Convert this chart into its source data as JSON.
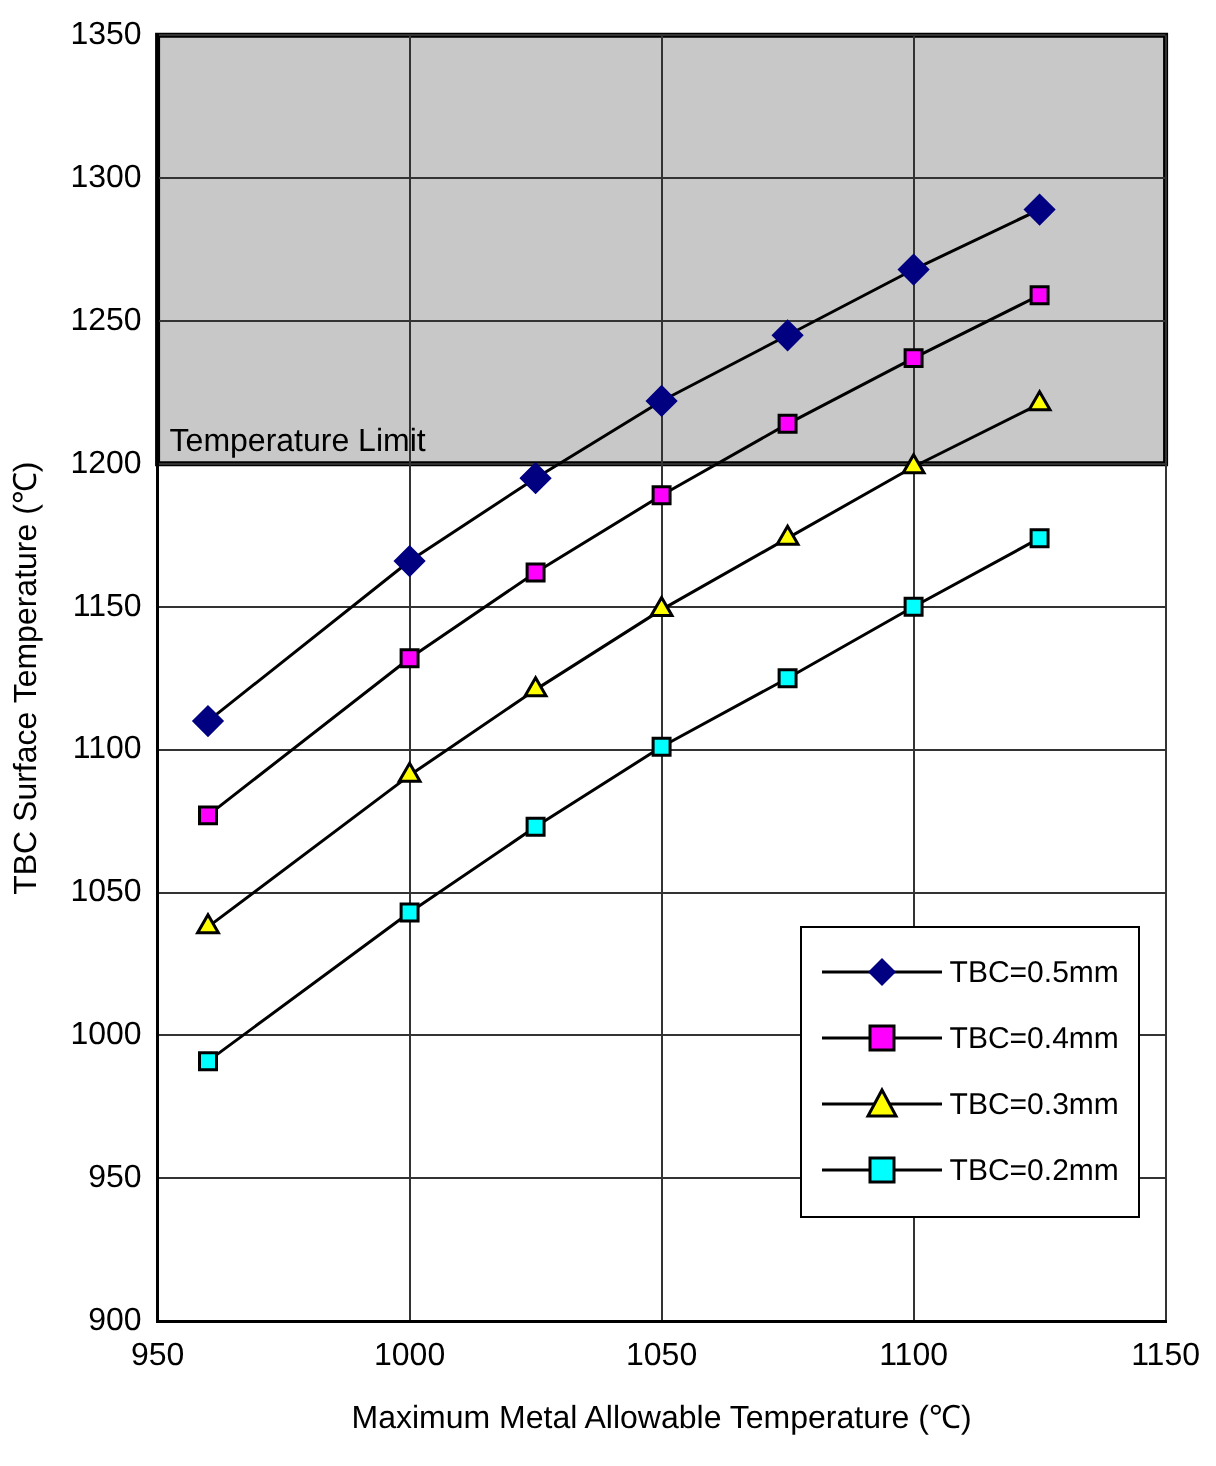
{
  "chart_data": {
    "type": "line",
    "xlabel": "Maximum Metal Allowable Temperature (℃)",
    "ylabel": "TBC Surface Temperature (℃)",
    "x": [
      960,
      1000,
      1025,
      1050,
      1075,
      1100,
      1125
    ],
    "series": [
      {
        "name": "TBC=0.5mm",
        "color": "#000080",
        "marker": "diamond",
        "values": [
          1110,
          1166,
          1195,
          1222,
          1245,
          1268,
          1289
        ]
      },
      {
        "name": "TBC=0.4mm",
        "color": "#ff00ff",
        "marker": "square",
        "values": [
          1077,
          1132,
          1162,
          1189,
          1214,
          1237,
          1259
        ]
      },
      {
        "name": "TBC=0.3mm",
        "color": "#ffff00",
        "marker": "triangle",
        "values": [
          1038,
          1091,
          1121,
          1149,
          1174,
          1199,
          1221
        ]
      },
      {
        "name": "TBC=0.2mm",
        "color": "#00ffff",
        "marker": "square",
        "values": [
          991,
          1043,
          1073,
          1101,
          1125,
          1150,
          1174
        ]
      }
    ],
    "xlim": [
      950,
      1150
    ],
    "xticks": [
      950,
      1000,
      1050,
      1100,
      1150
    ],
    "ylim": [
      900,
      1350
    ],
    "yticks": [
      900,
      950,
      1000,
      1050,
      1100,
      1150,
      1200,
      1250,
      1300,
      1350
    ],
    "bands": [
      {
        "axis": "y",
        "from": 1200,
        "to": 1350,
        "label": "Temperature Limit",
        "color": "#c8c8c8"
      }
    ],
    "grid": true,
    "legend": "bottom right"
  }
}
